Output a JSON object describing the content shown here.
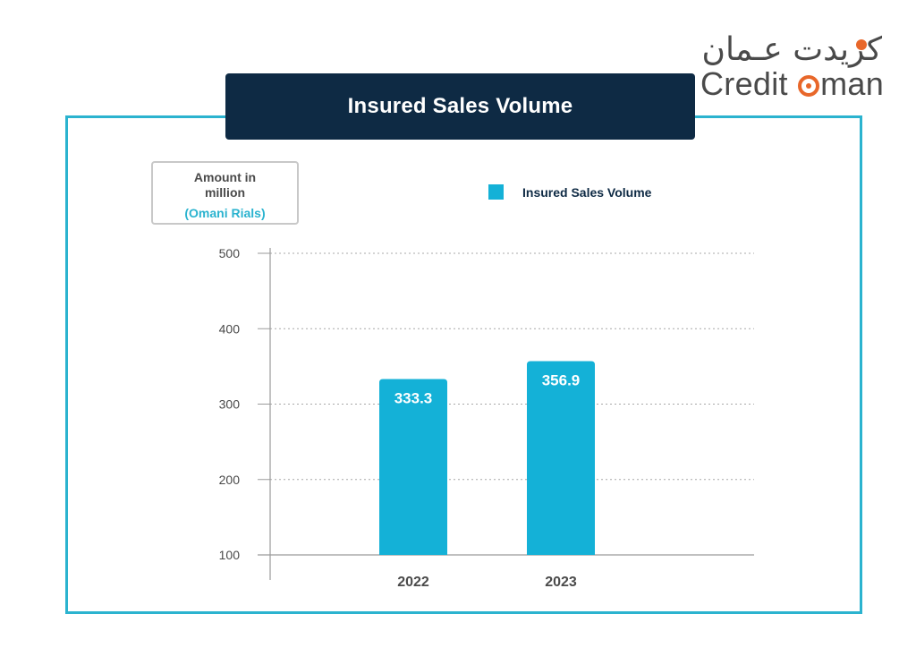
{
  "logo": {
    "arabic_text": "كريدت عـمان",
    "english_prefix": "Credit ",
    "english_suffix": "man"
  },
  "unit_box": {
    "line1": "Amount in",
    "line2": "million",
    "line3": "(Omani Rials)"
  },
  "chart_data": {
    "type": "bar",
    "title": "Insured Sales Volume",
    "categories": [
      "2022",
      "2023"
    ],
    "series": [
      {
        "name": "Insured Sales Volume",
        "values": [
          333.3,
          356.9
        ],
        "color": "#14b1d7"
      }
    ],
    "data_labels": [
      "333.3",
      "356.9"
    ],
    "y_ticks": [
      "100",
      "200",
      "300",
      "400",
      "500"
    ],
    "ylim": [
      100,
      500
    ],
    "grid": true,
    "legend_position": "top-right"
  },
  "colors": {
    "accent": "#2bb3cf",
    "title_bg": "#0e2a44",
    "bar": "#14b1d7",
    "logo_orange": "#e8672a"
  }
}
